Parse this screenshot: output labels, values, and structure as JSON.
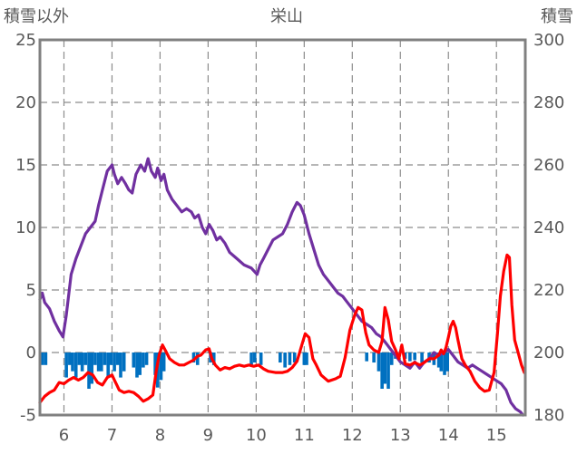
{
  "chart_data": {
    "type": "line",
    "title": "栄山",
    "left_axis_label": "積雪以外",
    "right_axis_label": "積雪",
    "left_ylim": [
      -5,
      25
    ],
    "left_ticks": [
      25,
      20,
      15,
      10,
      5,
      0,
      -5
    ],
    "right_ylim": [
      180,
      300
    ],
    "right_ticks": [
      300,
      280,
      260,
      240,
      220,
      200,
      180
    ],
    "xlim": [
      5.5,
      15.6
    ],
    "x_ticks": [
      6,
      7,
      8,
      9,
      10,
      11,
      12,
      13,
      14,
      15
    ],
    "grid": true,
    "colors": {
      "snow_depth": "#7030a0",
      "temperature": "#ff0000",
      "precipitation": "#0070c0"
    },
    "series": [
      {
        "axis": "right",
        "style": "line",
        "color": "#7030a0",
        "points": [
          [
            5.5,
            217
          ],
          [
            5.55,
            219
          ],
          [
            5.6,
            216
          ],
          [
            5.7,
            214
          ],
          [
            5.8,
            210
          ],
          [
            5.9,
            207
          ],
          [
            5.98,
            205
          ],
          [
            6.05,
            212
          ],
          [
            6.15,
            225
          ],
          [
            6.25,
            230
          ],
          [
            6.35,
            234
          ],
          [
            6.45,
            238
          ],
          [
            6.55,
            240
          ],
          [
            6.65,
            242
          ],
          [
            6.72,
            247
          ],
          [
            6.8,
            252
          ],
          [
            6.9,
            258
          ],
          [
            7.0,
            260
          ],
          [
            7.05,
            257
          ],
          [
            7.12,
            254
          ],
          [
            7.2,
            256
          ],
          [
            7.28,
            254
          ],
          [
            7.35,
            252
          ],
          [
            7.42,
            251
          ],
          [
            7.5,
            257
          ],
          [
            7.6,
            260
          ],
          [
            7.68,
            258
          ],
          [
            7.75,
            262
          ],
          [
            7.82,
            258
          ],
          [
            7.9,
            256
          ],
          [
            7.95,
            259
          ],
          [
            8.02,
            255
          ],
          [
            8.08,
            257
          ],
          [
            8.15,
            252
          ],
          [
            8.25,
            249
          ],
          [
            8.35,
            247
          ],
          [
            8.45,
            245
          ],
          [
            8.55,
            246
          ],
          [
            8.65,
            245
          ],
          [
            8.72,
            243
          ],
          [
            8.8,
            244
          ],
          [
            8.88,
            240
          ],
          [
            8.95,
            238
          ],
          [
            9.02,
            241
          ],
          [
            9.1,
            239
          ],
          [
            9.18,
            236
          ],
          [
            9.25,
            237
          ],
          [
            9.35,
            235
          ],
          [
            9.45,
            232
          ],
          [
            9.6,
            230
          ],
          [
            9.75,
            228
          ],
          [
            9.9,
            227
          ],
          [
            10.02,
            225
          ],
          [
            10.08,
            228
          ],
          [
            10.15,
            230
          ],
          [
            10.25,
            233
          ],
          [
            10.35,
            236
          ],
          [
            10.45,
            237
          ],
          [
            10.55,
            238
          ],
          [
            10.65,
            241
          ],
          [
            10.75,
            245
          ],
          [
            10.85,
            248
          ],
          [
            10.92,
            247
          ],
          [
            11.0,
            244
          ],
          [
            11.1,
            238
          ],
          [
            11.2,
            233
          ],
          [
            11.3,
            228
          ],
          [
            11.4,
            225
          ],
          [
            11.5,
            223
          ],
          [
            11.6,
            221
          ],
          [
            11.7,
            219
          ],
          [
            11.8,
            218
          ],
          [
            11.9,
            216
          ],
          [
            12.0,
            214
          ],
          [
            12.1,
            212
          ],
          [
            12.2,
            210
          ],
          [
            12.3,
            209
          ],
          [
            12.4,
            208
          ],
          [
            12.5,
            206
          ],
          [
            12.6,
            205
          ],
          [
            12.7,
            203
          ],
          [
            12.8,
            201
          ],
          [
            12.9,
            199
          ],
          [
            13.0,
            197
          ],
          [
            13.1,
            196
          ],
          [
            13.2,
            195
          ],
          [
            13.3,
            197
          ],
          [
            13.4,
            195
          ],
          [
            13.5,
            197
          ],
          [
            13.6,
            198
          ],
          [
            13.7,
            200
          ],
          [
            13.8,
            199
          ],
          [
            13.9,
            200
          ],
          [
            14.0,
            201
          ],
          [
            14.1,
            199
          ],
          [
            14.2,
            197
          ],
          [
            14.3,
            196
          ],
          [
            14.4,
            195
          ],
          [
            14.5,
            196
          ],
          [
            14.6,
            195
          ],
          [
            14.7,
            194
          ],
          [
            14.8,
            193
          ],
          [
            14.9,
            192
          ],
          [
            15.0,
            191
          ],
          [
            15.1,
            190
          ],
          [
            15.2,
            188
          ],
          [
            15.3,
            184
          ],
          [
            15.4,
            182
          ],
          [
            15.5,
            181
          ],
          [
            15.55,
            180
          ]
        ]
      },
      {
        "axis": "left",
        "style": "line",
        "color": "#ff0000",
        "points": [
          [
            5.5,
            -4
          ],
          [
            5.6,
            -3.5
          ],
          [
            5.7,
            -3.2
          ],
          [
            5.8,
            -3
          ],
          [
            5.9,
            -2.4
          ],
          [
            6.0,
            -2.5
          ],
          [
            6.1,
            -2.2
          ],
          [
            6.2,
            -2.0
          ],
          [
            6.3,
            -2.2
          ],
          [
            6.4,
            -2.0
          ],
          [
            6.5,
            -1.6
          ],
          [
            6.6,
            -1.8
          ],
          [
            6.7,
            -2.4
          ],
          [
            6.8,
            -2.6
          ],
          [
            6.9,
            -2.0
          ],
          [
            7.0,
            -1.8
          ],
          [
            7.05,
            -2.2
          ],
          [
            7.1,
            -2.6
          ],
          [
            7.15,
            -3.0
          ],
          [
            7.25,
            -3.2
          ],
          [
            7.35,
            -3.1
          ],
          [
            7.45,
            -3.2
          ],
          [
            7.55,
            -3.5
          ],
          [
            7.65,
            -3.9
          ],
          [
            7.75,
            -3.7
          ],
          [
            7.85,
            -3.4
          ],
          [
            7.92,
            -1.5
          ],
          [
            7.98,
            -0.2
          ],
          [
            8.05,
            0.6
          ],
          [
            8.12,
            0.1
          ],
          [
            8.2,
            -0.5
          ],
          [
            8.3,
            -0.8
          ],
          [
            8.4,
            -1.0
          ],
          [
            8.5,
            -1.0
          ],
          [
            8.6,
            -0.8
          ],
          [
            8.7,
            -0.6
          ],
          [
            8.78,
            -0.3
          ],
          [
            8.85,
            -0.2
          ],
          [
            8.95,
            0.2
          ],
          [
            9.02,
            0.3
          ],
          [
            9.08,
            -0.5
          ],
          [
            9.15,
            -1.0
          ],
          [
            9.25,
            -1.4
          ],
          [
            9.35,
            -1.2
          ],
          [
            9.45,
            -1.3
          ],
          [
            9.55,
            -1.1
          ],
          [
            9.65,
            -1.0
          ],
          [
            9.75,
            -1.1
          ],
          [
            9.85,
            -1.0
          ],
          [
            9.95,
            -1.1
          ],
          [
            10.05,
            -1.0
          ],
          [
            10.15,
            -1.3
          ],
          [
            10.25,
            -1.5
          ],
          [
            10.4,
            -1.6
          ],
          [
            10.55,
            -1.6
          ],
          [
            10.65,
            -1.5
          ],
          [
            10.75,
            -1.2
          ],
          [
            10.85,
            -0.7
          ],
          [
            10.95,
            0.6
          ],
          [
            11.02,
            1.5
          ],
          [
            11.1,
            1.2
          ],
          [
            11.18,
            -0.5
          ],
          [
            11.25,
            -1.0
          ],
          [
            11.35,
            -1.8
          ],
          [
            11.5,
            -2.3
          ],
          [
            11.65,
            -2.1
          ],
          [
            11.75,
            -1.9
          ],
          [
            11.85,
            -0.4
          ],
          [
            11.95,
            1.8
          ],
          [
            12.05,
            3.0
          ],
          [
            12.12,
            3.6
          ],
          [
            12.2,
            3.4
          ],
          [
            12.28,
            1.6
          ],
          [
            12.35,
            0.6
          ],
          [
            12.45,
            0.2
          ],
          [
            12.55,
            0.0
          ],
          [
            12.62,
            0.9
          ],
          [
            12.68,
            3.6
          ],
          [
            12.75,
            2.6
          ],
          [
            12.82,
            0.9
          ],
          [
            12.9,
            0.2
          ],
          [
            12.97,
            -0.5
          ],
          [
            13.03,
            0.6
          ],
          [
            13.1,
            -0.9
          ],
          [
            13.2,
            -1.0
          ],
          [
            13.3,
            -0.8
          ],
          [
            13.4,
            -1.0
          ],
          [
            13.5,
            -0.8
          ],
          [
            13.6,
            -0.5
          ],
          [
            13.7,
            -0.5
          ],
          [
            13.8,
            -0.2
          ],
          [
            13.85,
            0.2
          ],
          [
            13.9,
            -0.1
          ],
          [
            13.95,
            0.4
          ],
          [
            14.0,
            1.2
          ],
          [
            14.05,
            2.1
          ],
          [
            14.1,
            2.5
          ],
          [
            14.15,
            2.0
          ],
          [
            14.2,
            1.0
          ],
          [
            14.28,
            -0.5
          ],
          [
            14.35,
            -1.0
          ],
          [
            14.45,
            -1.5
          ],
          [
            14.55,
            -2.3
          ],
          [
            14.65,
            -2.8
          ],
          [
            14.75,
            -3.1
          ],
          [
            14.85,
            -3.0
          ],
          [
            14.95,
            -1.6
          ],
          [
            15.02,
            1.5
          ],
          [
            15.08,
            4.5
          ],
          [
            15.15,
            6.5
          ],
          [
            15.22,
            7.8
          ],
          [
            15.27,
            7.6
          ],
          [
            15.32,
            3.8
          ],
          [
            15.38,
            1.0
          ],
          [
            15.45,
            0.0
          ],
          [
            15.52,
            -1.0
          ],
          [
            15.58,
            -1.6
          ]
        ]
      },
      {
        "axis": "left",
        "style": "bar",
        "color": "#0070c0",
        "points": [
          [
            5.55,
            -1
          ],
          [
            5.62,
            -1
          ],
          [
            6.05,
            -2
          ],
          [
            6.12,
            -1
          ],
          [
            6.18,
            -1.5
          ],
          [
            6.25,
            -2
          ],
          [
            6.32,
            -1
          ],
          [
            6.38,
            -1.5
          ],
          [
            6.45,
            -1
          ],
          [
            6.52,
            -2.9
          ],
          [
            6.58,
            -2.5
          ],
          [
            6.65,
            -1
          ],
          [
            6.72,
            -1.5
          ],
          [
            6.78,
            -1.5
          ],
          [
            6.85,
            -1
          ],
          [
            6.92,
            -2
          ],
          [
            6.98,
            -1
          ],
          [
            7.05,
            -1.5
          ],
          [
            7.12,
            -1
          ],
          [
            7.18,
            -2
          ],
          [
            7.25,
            -1.5
          ],
          [
            7.45,
            -1.2
          ],
          [
            7.52,
            -2
          ],
          [
            7.58,
            -1.8
          ],
          [
            7.65,
            -1.2
          ],
          [
            7.72,
            -1
          ],
          [
            7.9,
            -1.8
          ],
          [
            7.95,
            -2.8
          ],
          [
            8.02,
            -2.2
          ],
          [
            8.08,
            -1.5
          ],
          [
            8.7,
            -0.8
          ],
          [
            8.78,
            -1
          ],
          [
            9.05,
            -0.8
          ],
          [
            9.12,
            -1
          ],
          [
            9.9,
            -1
          ],
          [
            9.97,
            -0.8
          ],
          [
            10.1,
            -1
          ],
          [
            10.5,
            -0.8
          ],
          [
            10.6,
            -1.2
          ],
          [
            10.7,
            -1
          ],
          [
            10.8,
            -0.8
          ],
          [
            11.0,
            -1
          ],
          [
            11.05,
            -1
          ],
          [
            12.3,
            -0.7
          ],
          [
            12.45,
            -0.8
          ],
          [
            12.55,
            -1.5
          ],
          [
            12.62,
            -2.9
          ],
          [
            12.68,
            -2.5
          ],
          [
            12.75,
            -2.9
          ],
          [
            12.82,
            -1
          ],
          [
            12.9,
            -0.5
          ],
          [
            13.1,
            -0.5
          ],
          [
            13.2,
            -0.7
          ],
          [
            13.3,
            -0.6
          ],
          [
            13.45,
            -0.8
          ],
          [
            13.6,
            -0.8
          ],
          [
            13.7,
            -1
          ],
          [
            13.8,
            -1.2
          ],
          [
            13.85,
            -1.5
          ],
          [
            13.92,
            -1.8
          ],
          [
            13.98,
            -1.5
          ]
        ]
      }
    ]
  }
}
